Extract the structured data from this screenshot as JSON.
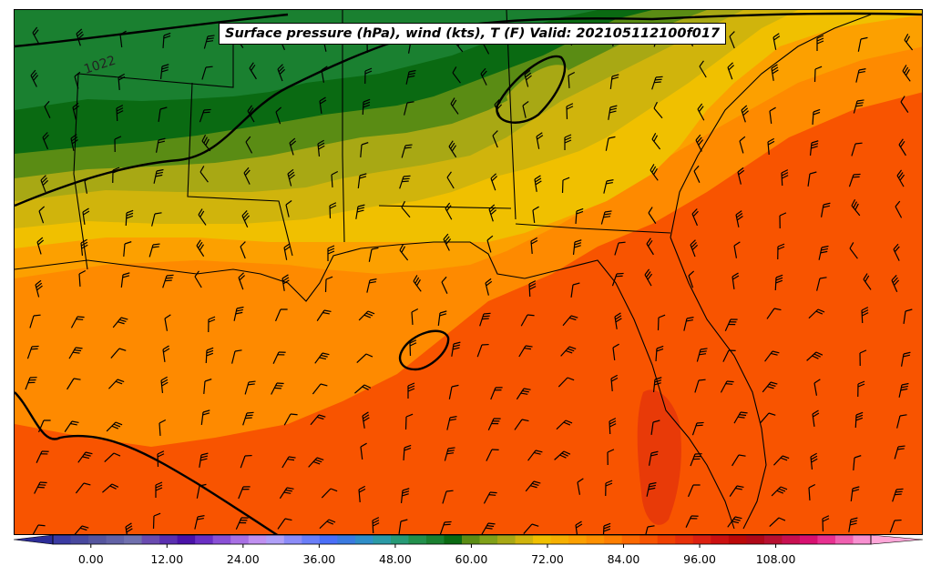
{
  "title": "Surface pressure (hPa), wind (kts), T (F) Valid: 202105112100f017",
  "isobar_label": "1022",
  "colorbar": {
    "ticks": [
      "0.00",
      "12.00",
      "24.00",
      "36.00",
      "48.00",
      "60.00",
      "72.00",
      "84.00",
      "96.00",
      "108.00"
    ],
    "tick_values": [
      0,
      12,
      24,
      36,
      48,
      60,
      72,
      84,
      96,
      108
    ],
    "min": -6,
    "max": 123,
    "step": 3,
    "colors": [
      "#3b3ba3",
      "#48489e",
      "#55559e",
      "#6262a6",
      "#7070ae",
      "#6a4bb0",
      "#5a2fb0",
      "#4a12a8",
      "#6a2fc4",
      "#8a50d6",
      "#a870e4",
      "#c090f0",
      "#b0a0f8",
      "#8c8cf8",
      "#6a7ef8",
      "#4a6ef8",
      "#3a7ae0",
      "#2f8ec8",
      "#2b9aa6",
      "#279a76",
      "#22904c",
      "#1a8030",
      "#0a6a12",
      "#5a8c14",
      "#80a018",
      "#a8a814",
      "#d0b40c",
      "#f0c000",
      "#f6b000",
      "#fca000",
      "#fe9000",
      "#fe7e00",
      "#fc6800",
      "#f85400",
      "#f04000",
      "#e83008",
      "#dc2010",
      "#cc1010",
      "#bc0808",
      "#b00818",
      "#b81030",
      "#c81050",
      "#d81070",
      "#e83090",
      "#f060b0",
      "#f890d0"
    ],
    "under_color": "#2c2c98",
    "over_color": "#ffa6d8"
  },
  "map_colors": {
    "t_54": "#1a8030",
    "t_57": "#0a6a12",
    "t_60": "#5a8c14",
    "t_63": "#a8a814",
    "t_66": "#d0b40c",
    "t_69": "#f0c000",
    "t_72": "#fca000",
    "t_75": "#fe8a00",
    "t_78": "#fc6800",
    "t_81": "#f85400",
    "t_84": "#e83a08"
  }
}
